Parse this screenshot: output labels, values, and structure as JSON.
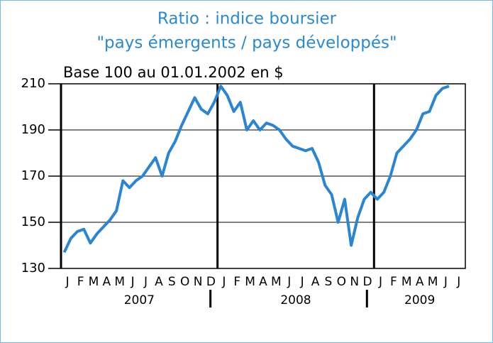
{
  "chart_data": {
    "type": "line",
    "title": "Ratio : indice boursier",
    "subtitle": "\"pays émergents / pays développés\"",
    "y_label": "Base 100 au 01.01.2002 en $",
    "categories": [
      "J",
      null,
      "F",
      null,
      "M",
      null,
      "A",
      null,
      "M",
      null,
      "J",
      null,
      "J",
      null,
      "A",
      null,
      "S",
      null,
      "O",
      null,
      "N",
      null,
      "D",
      null,
      "J",
      null,
      "F",
      null,
      "M",
      null,
      "A",
      null,
      "M",
      null,
      "J",
      null,
      "J",
      null,
      "A",
      null,
      "S",
      null,
      "O",
      null,
      "N",
      null,
      "D",
      null,
      "J",
      null,
      "F",
      null,
      "M",
      null,
      "A",
      null,
      "M",
      null,
      "J",
      null,
      "J",
      null
    ],
    "years": [
      "2007",
      "2008",
      "2009"
    ],
    "series": [
      {
        "name": "Ratio",
        "color": "#2a86d2",
        "values": [
          137,
          143,
          146,
          147,
          141,
          145,
          148,
          151,
          155,
          168,
          165,
          168,
          170,
          174,
          178,
          170,
          180,
          185,
          192,
          198,
          204,
          199,
          197,
          202,
          209,
          205,
          198,
          202,
          190,
          194,
          190,
          193,
          192,
          190,
          186,
          183,
          182,
          181,
          182,
          176,
          166,
          162,
          150,
          160,
          140,
          152,
          160,
          163,
          160,
          163,
          170,
          180,
          183,
          186,
          190,
          197,
          198,
          205,
          208,
          209,
          null,
          null
        ]
      }
    ],
    "ylim": [
      130,
      210
    ],
    "yticks": [
      130,
      150,
      170,
      190,
      210
    ],
    "grid": true
  }
}
